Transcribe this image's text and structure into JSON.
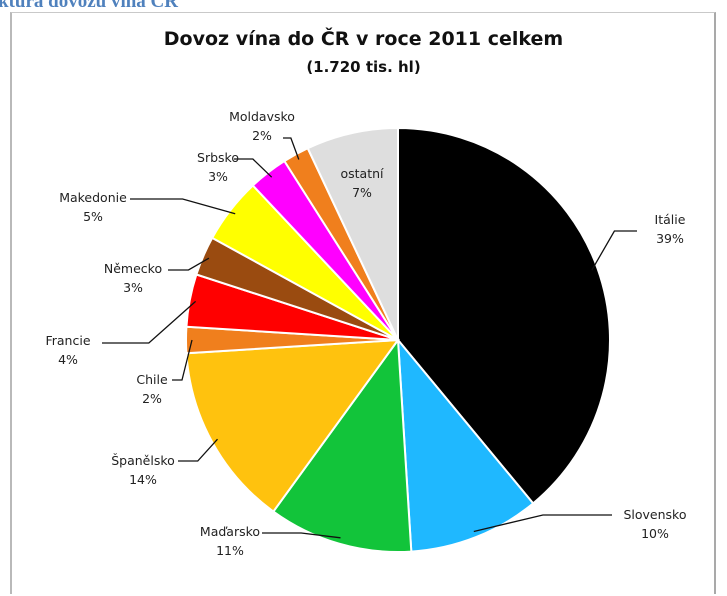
{
  "page": {
    "heading": "ktura dovozu vína ČR"
  },
  "chart_data": {
    "type": "pie",
    "title": "Dovoz vína do ČR v roce 2011 celkem",
    "subtitle": "(1.720 tis. hl)",
    "legend": "none",
    "slices": [
      {
        "label": "Itálie",
        "value": 39,
        "value_label": "39%",
        "color": "#000000"
      },
      {
        "label": "Slovensko",
        "value": 10,
        "value_label": "10%",
        "color": "#1fb8ff"
      },
      {
        "label": "Maďarsko",
        "value": 11,
        "value_label": "11%",
        "color": "#12c43a"
      },
      {
        "label": "Španělsko",
        "value": 14,
        "value_label": "14%",
        "color": "#ffc20e"
      },
      {
        "label": "Chile",
        "value": 2,
        "value_label": "2%",
        "color": "#f07f1d"
      },
      {
        "label": "Francie",
        "value": 4,
        "value_label": "4%",
        "color": "#ff0000"
      },
      {
        "label": "Německo",
        "value": 3,
        "value_label": "3%",
        "color": "#9a4b10"
      },
      {
        "label": "Makedonie",
        "value": 5,
        "value_label": "5%",
        "color": "#ffff00"
      },
      {
        "label": "Srbsko",
        "value": 3,
        "value_label": "3%",
        "color": "#ff00ff"
      },
      {
        "label": "Moldavsko",
        "value": 2,
        "value_label": "2%",
        "color": "#f07f1d"
      },
      {
        "label": "ostatní",
        "value": 7,
        "value_label": "7%",
        "color": "#dedede"
      }
    ]
  }
}
